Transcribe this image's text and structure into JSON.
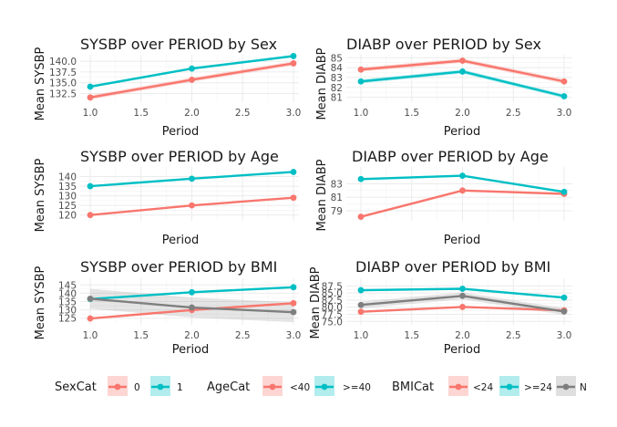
{
  "colors": {
    "red": "#f8766d",
    "teal": "#00bfc4",
    "grey": "#7f7f7f"
  },
  "chart_data": [
    {
      "type": "line",
      "title": "SYSBP over PERIOD by Sex",
      "xlabel": "Period",
      "ylabel": "Mean SYSBP",
      "x": [
        1,
        2,
        3
      ],
      "xlim": [
        1,
        3
      ],
      "xticks": [
        "1.0",
        "1.5",
        "2.0",
        "2.5",
        "3.0"
      ],
      "ylim": [
        130.5,
        141.5
      ],
      "yticks": [
        "132.5",
        "135.0",
        "137.5",
        "140.0"
      ],
      "grid": true,
      "series": [
        {
          "name": "0",
          "color": "red",
          "values": [
            131.6,
            135.7,
            139.5
          ],
          "band": 0.5
        },
        {
          "name": "1",
          "color": "teal",
          "values": [
            134.1,
            138.3,
            141.2
          ],
          "band": 0.3
        }
      ]
    },
    {
      "type": "line",
      "title": "DIABP over PERIOD by Sex",
      "xlabel": "Period",
      "ylabel": "Mean DIABP",
      "x": [
        1,
        2,
        3
      ],
      "xlim": [
        1,
        3
      ],
      "xticks": [
        "1.0",
        "1.5",
        "2.0",
        "2.5",
        "3.0"
      ],
      "ylim": [
        80.5,
        85.3
      ],
      "yticks": [
        "81",
        "82",
        "83",
        "84",
        "85"
      ],
      "grid": true,
      "series": [
        {
          "name": "0",
          "color": "red",
          "values": [
            83.8,
            84.7,
            82.6
          ],
          "band": 0.22
        },
        {
          "name": "1",
          "color": "teal",
          "values": [
            82.6,
            83.6,
            81.1
          ],
          "band": 0.2
        }
      ]
    },
    {
      "type": "line",
      "title": "SYSBP over PERIOD by Age",
      "xlabel": "Period",
      "ylabel": "Mean SYSBP",
      "x": [
        1,
        2,
        3
      ],
      "xlim": [
        1,
        3
      ],
      "xticks": [
        "",
        "",
        "",
        "",
        ""
      ],
      "ylim": [
        117,
        145
      ],
      "yticks": [
        "120",
        "125",
        "130",
        "135",
        "140"
      ],
      "grid": true,
      "series": [
        {
          "name": "<40",
          "color": "red",
          "values": [
            120.0,
            125.0,
            129.0
          ],
          "band": 0.4
        },
        {
          "name": ">=40",
          "color": "teal",
          "values": [
            135.0,
            138.9,
            142.4
          ],
          "band": 0.4
        }
      ]
    },
    {
      "type": "line",
      "title": "DIABP over PERIOD by Age",
      "xlabel": "Period",
      "ylabel": "Mean DIABP",
      "x": [
        1,
        2,
        3
      ],
      "xlim": [
        1,
        3
      ],
      "xticks": [
        "",
        "",
        "",
        "",
        ""
      ],
      "ylim": [
        77.5,
        85.5
      ],
      "yticks": [
        "79",
        "81",
        "83"
      ],
      "grid": true,
      "series": [
        {
          "name": "<40",
          "color": "red",
          "values": [
            78.1,
            82.0,
            81.5
          ],
          "band": 0.15
        },
        {
          "name": ">=40",
          "color": "teal",
          "values": [
            83.7,
            84.2,
            81.8
          ],
          "band": 0.15
        }
      ]
    },
    {
      "type": "line",
      "title": "SYSBP over PERIOD by BMI",
      "xlabel": "Period",
      "ylabel": "Mean SYSBP",
      "x": [
        1,
        2,
        3
      ],
      "xlim": [
        1,
        3
      ],
      "xticks": [
        "1.0",
        "1.5",
        "2.0",
        "2.5",
        "3.0"
      ],
      "ylim": [
        121,
        149
      ],
      "yticks": [
        "125",
        "130",
        "135",
        "140",
        "145"
      ],
      "grid": true,
      "series": [
        {
          "name": "<24",
          "color": "red",
          "values": [
            124.8,
            129.9,
            134.0
          ],
          "band": 0.6
        },
        {
          "name": ">=24",
          "color": "teal",
          "values": [
            136.5,
            140.6,
            143.6
          ],
          "band": 0.6
        },
        {
          "name": "N",
          "color": "grey",
          "values": [
            136.7,
            131.4,
            128.6
          ],
          "band": 6.0
        }
      ]
    },
    {
      "type": "line",
      "title": "DIABP over PERIOD by BMI",
      "xlabel": "Period",
      "ylabel": "Mean DIABP",
      "x": [
        1,
        2,
        3
      ],
      "xlim": [
        1,
        3
      ],
      "xticks": [
        "1.0",
        "1.5",
        "2.0",
        "2.5",
        "3.0"
      ],
      "ylim": [
        73.8,
        90.2
      ],
      "yticks": [
        "75.0",
        "77.5",
        "80.0",
        "82.5",
        "85.0",
        "87.5"
      ],
      "grid": true,
      "series": [
        {
          "name": "<24",
          "color": "red",
          "values": [
            78.4,
            80.1,
            78.9
          ],
          "band": 0.3
        },
        {
          "name": ">=24",
          "color": "teal",
          "values": [
            86.0,
            86.5,
            83.4
          ],
          "band": 0.4
        },
        {
          "name": "N",
          "color": "grey",
          "values": [
            80.8,
            84.0,
            78.5
          ],
          "band": 1.2
        }
      ]
    }
  ],
  "legends": [
    {
      "title": "SexCat",
      "items": [
        {
          "label": "0",
          "color": "red"
        },
        {
          "label": "1",
          "color": "teal"
        }
      ]
    },
    {
      "title": "AgeCat",
      "items": [
        {
          "label": "<40",
          "color": "red"
        },
        {
          "label": ">=40",
          "color": "teal"
        }
      ]
    },
    {
      "title": "BMICat",
      "items": [
        {
          "label": "<24",
          "color": "red"
        },
        {
          "label": ">=24",
          "color": "teal"
        },
        {
          "label": "N",
          "color": "grey"
        }
      ]
    }
  ]
}
